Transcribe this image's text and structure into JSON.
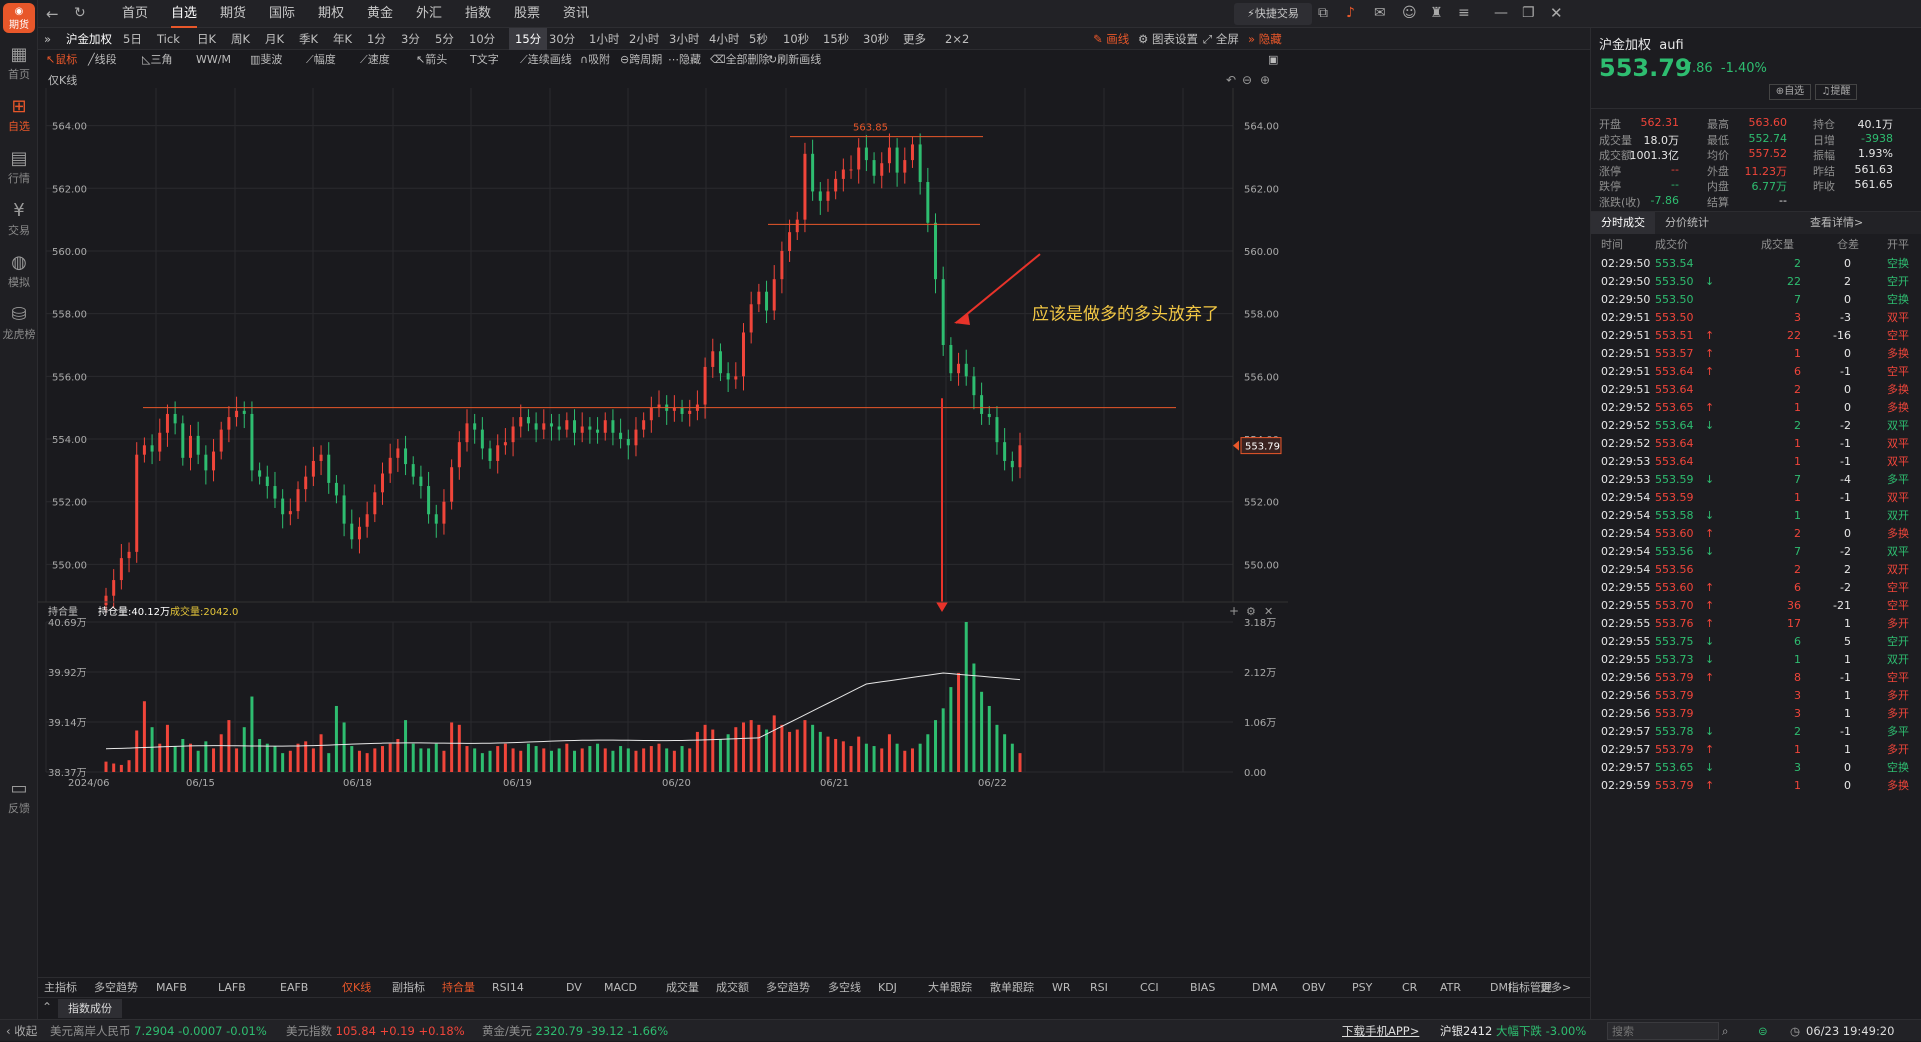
{
  "app": {
    "logo_text": "期货"
  },
  "leftnav": [
    "首页",
    "自选",
    "行情",
    "交易",
    "模拟",
    "龙虎榜",
    "反馈"
  ],
  "topnav": {
    "items": [
      "首页",
      "自选",
      "期货",
      "国际",
      "期权",
      "黄金",
      "外汇",
      "指数",
      "股票",
      "资讯"
    ],
    "quick_trade": "快捷交易"
  },
  "toolbar": {
    "symbol": "沪金加权",
    "periods": [
      "5日",
      "Tick",
      "日K",
      "周K",
      "月K",
      "季K",
      "年K",
      "1分",
      "3分",
      "5分",
      "10分",
      "15分",
      "30分",
      "1小时",
      "2小时",
      "3小时",
      "4小时",
      "5秒",
      "10秒",
      "15秒",
      "30秒",
      "更多",
      "2×2"
    ],
    "selected_period": "15分",
    "right": [
      "画线",
      "图表设置",
      "全屏",
      "隐藏"
    ]
  },
  "drawtools": [
    "鼠标",
    "线段",
    "三角",
    "W/M",
    "斐波",
    "幅度",
    "速度",
    "箭头",
    "文字",
    "连续画线",
    "吸附",
    "跨周期",
    "隐藏",
    "全部删除",
    "刷新画线"
  ],
  "chart_data": {
    "type": "candlestick",
    "title": "仅K线",
    "ylabel_ticks": [
      "564.00",
      "562.00",
      "560.00",
      "558.00",
      "556.00",
      "554.00",
      "552.00",
      "550.00"
    ],
    "y_values": [
      564,
      562,
      560,
      558,
      556,
      554,
      552,
      550
    ],
    "ylim": [
      548.8,
      565.2
    ],
    "x_ticks": [
      "2024/06",
      "06/15",
      "06/18",
      "06/19",
      "06/20",
      "06/21",
      "06/22"
    ],
    "closes": [
      549.0,
      549.5,
      550.2,
      550.4,
      553.5,
      553.8,
      553.6,
      554.2,
      554.8,
      554.5,
      553.4,
      554.1,
      553.5,
      553.0,
      553.6,
      554.3,
      554.7,
      554.9,
      554.8,
      553.0,
      552.8,
      552.5,
      552.1,
      551.6,
      551.7,
      552.4,
      552.8,
      553.3,
      553.5,
      552.6,
      552.2,
      551.3,
      550.8,
      551.2,
      551.6,
      552.3,
      552.9,
      553.4,
      553.7,
      553.2,
      552.8,
      552.5,
      551.6,
      551.3,
      552.0,
      553.1,
      553.9,
      554.5,
      554.3,
      553.7,
      553.3,
      553.8,
      553.9,
      554.4,
      554.7,
      554.5,
      554.3,
      554.5,
      554.4,
      554.3,
      554.6,
      554.2,
      554.4,
      554.3,
      554.2,
      554.6,
      554.2,
      554.0,
      553.8,
      554.3,
      554.6,
      555.0,
      555.1,
      554.9,
      555.0,
      554.8,
      554.9,
      555.1,
      556.3,
      556.8,
      556.1,
      555.9,
      556.0,
      557.4,
      558.3,
      558.7,
      558.1,
      559.1,
      560.0,
      560.6,
      561.0,
      563.1,
      561.9,
      561.6,
      561.9,
      562.3,
      562.6,
      562.6,
      563.3,
      562.9,
      562.4,
      562.8,
      563.3,
      562.5,
      562.9,
      563.4,
      562.2,
      560.9,
      559.1,
      557.0,
      556.1,
      556.4,
      556.0,
      555.4,
      554.8,
      554.7,
      553.9,
      553.3,
      553.1,
      553.8
    ],
    "annotation_high": "563.85",
    "annotation_text": "应该是做多的多头放弃了",
    "last_price_label": "553.79",
    "volume_panel": {
      "label": "持合量",
      "oi_label": "持仓量:40.12万",
      "vol_label": "成交量:2042.0",
      "left_ticks": [
        "40.69万",
        "39.92万",
        "39.14万",
        "38.37万"
      ],
      "right_ticks": [
        "3.18万",
        "2.12万",
        "1.06万",
        "0.00"
      ],
      "volumes": [
        0.22,
        0.18,
        0.15,
        0.25,
        0.88,
        1.5,
        0.95,
        0.6,
        1.0,
        0.55,
        0.7,
        0.6,
        0.45,
        0.65,
        0.5,
        0.8,
        1.1,
        0.5,
        0.95,
        1.6,
        0.7,
        0.6,
        0.55,
        0.4,
        0.45,
        0.6,
        0.65,
        0.5,
        0.8,
        0.4,
        1.4,
        1.05,
        0.55,
        0.45,
        0.4,
        0.5,
        0.55,
        0.6,
        0.7,
        1.1,
        0.6,
        0.5,
        0.5,
        0.6,
        0.45,
        1.05,
        1.0,
        0.55,
        0.5,
        0.4,
        0.45,
        0.55,
        0.6,
        0.5,
        0.45,
        0.6,
        0.55,
        0.5,
        0.45,
        0.5,
        0.6,
        0.45,
        0.5,
        0.55,
        0.6,
        0.5,
        0.45,
        0.55,
        0.5,
        0.45,
        0.5,
        0.55,
        0.6,
        0.5,
        0.45,
        0.55,
        0.5,
        0.85,
        1.0,
        0.9,
        0.7,
        0.8,
        0.95,
        1.05,
        1.1,
        1.0,
        0.9,
        1.2,
        1.0,
        0.85,
        0.9,
        1.1,
        1.0,
        0.85,
        0.75,
        0.7,
        0.65,
        0.55,
        0.75,
        0.6,
        0.55,
        0.5,
        0.8,
        0.6,
        0.45,
        0.5,
        0.6,
        0.8,
        1.1,
        1.35,
        1.8,
        2.1,
        3.18,
        2.3,
        1.7,
        1.4,
        1.0,
        0.8,
        0.6,
        0.4
      ]
    }
  },
  "indicator_tabs": [
    "主指标",
    "多空趋势",
    "MAFB",
    "LAFB",
    "EAFB",
    "仅K线",
    "副指标",
    "持合量",
    "RSI14",
    "DV",
    "MACD",
    "成交量",
    "成交额",
    "多空趋势",
    "多空线",
    "KDJ",
    "大单跟踪",
    "散单跟踪",
    "WR",
    "RSI",
    "CCI",
    "BIAS",
    "DMA",
    "OBV",
    "PSY",
    "CR",
    "ATR",
    "DMI",
    "更多>",
    "指标管理"
  ],
  "bottom_tab": "指数成份",
  "statusbar": {
    "collapse": "收起",
    "items": [
      {
        "name": "美元离岸人民币",
        "price": "7.2904",
        "chg": "-0.0007",
        "pct": "-0.01%",
        "dir": "down"
      },
      {
        "name": "美元指数",
        "price": "105.84",
        "chg": "+0.19",
        "pct": "+0.18%",
        "dir": "up"
      },
      {
        "name": "黄金/美元",
        "price": "2320.79",
        "chg": "-39.12",
        "pct": "-1.66%",
        "dir": "down"
      }
    ],
    "download": "下载手机APP>",
    "alert_symbol": "沪银2412",
    "alert_text": "大幅下跌",
    "alert_pct": "-3.00%",
    "search_placeholder": "搜索",
    "datetime": "06/23 19:49:20"
  },
  "quote": {
    "name": "沪金加权",
    "code": "aufi",
    "price": "553.79",
    "chg": "-7.86",
    "pct": "-1.40%",
    "btn_fav": "自选",
    "btn_alert": "提醒",
    "rows": [
      [
        [
          "开盘",
          "562.31",
          "red"
        ],
        [
          "最高",
          "563.60",
          "red"
        ],
        [
          "持仓",
          "40.1万",
          "white"
        ]
      ],
      [
        [
          "成交量",
          "18.0万",
          "white"
        ],
        [
          "最低",
          "552.74",
          "green"
        ],
        [
          "日增",
          "-3938",
          "green"
        ]
      ],
      [
        [
          "成交额",
          "1001.3亿",
          "white"
        ],
        [
          "均价",
          "557.52",
          "red"
        ],
        [
          "振幅",
          "1.93%",
          "white"
        ]
      ],
      [
        [
          "涨停",
          "--",
          "red"
        ],
        [
          "外盘",
          "11.23万",
          "red"
        ],
        [
          "昨结",
          "561.63",
          "white"
        ]
      ],
      [
        [
          "跌停",
          "--",
          "green"
        ],
        [
          "内盘",
          "6.77万",
          "green"
        ],
        [
          "昨收",
          "561.65",
          "white"
        ]
      ],
      [
        [
          "涨跌(收)",
          "-7.86",
          "green"
        ],
        [
          "结算",
          "--",
          "white"
        ],
        [
          "",
          "",
          ""
        ]
      ]
    ]
  },
  "trades": {
    "tabs": [
      "分时成交",
      "分价统计"
    ],
    "more": "查看详情>",
    "headers": [
      "时间",
      "成交价",
      "成交量",
      "仓差",
      "开平"
    ],
    "rows": [
      [
        "02:29:50",
        "553.54",
        "",
        "2",
        "0",
        "空换",
        "g"
      ],
      [
        "02:29:50",
        "553.50",
        "↓",
        "22",
        "2",
        "空开",
        "g"
      ],
      [
        "02:29:50",
        "553.50",
        "",
        "7",
        "0",
        "空换",
        "g"
      ],
      [
        "02:29:51",
        "553.50",
        "",
        "3",
        "-3",
        "双平",
        "r"
      ],
      [
        "02:29:51",
        "553.51",
        "↑",
        "22",
        "-16",
        "空平",
        "r"
      ],
      [
        "02:29:51",
        "553.57",
        "↑",
        "1",
        "0",
        "多换",
        "r"
      ],
      [
        "02:29:51",
        "553.64",
        "↑",
        "6",
        "-1",
        "空平",
        "r"
      ],
      [
        "02:29:51",
        "553.64",
        "",
        "2",
        "0",
        "多换",
        "r"
      ],
      [
        "02:29:52",
        "553.65",
        "↑",
        "1",
        "0",
        "多换",
        "r"
      ],
      [
        "02:29:52",
        "553.64",
        "↓",
        "2",
        "-2",
        "双平",
        "g"
      ],
      [
        "02:29:52",
        "553.64",
        "",
        "1",
        "-1",
        "双平",
        "r"
      ],
      [
        "02:29:53",
        "553.64",
        "",
        "1",
        "-1",
        "双平",
        "r"
      ],
      [
        "02:29:53",
        "553.59",
        "↓",
        "7",
        "-4",
        "多平",
        "g"
      ],
      [
        "02:29:54",
        "553.59",
        "",
        "1",
        "-1",
        "双平",
        "r"
      ],
      [
        "02:29:54",
        "553.58",
        "↓",
        "1",
        "1",
        "双开",
        "g"
      ],
      [
        "02:29:54",
        "553.60",
        "↑",
        "2",
        "0",
        "多换",
        "r"
      ],
      [
        "02:29:54",
        "553.56",
        "↓",
        "7",
        "-2",
        "双平",
        "g"
      ],
      [
        "02:29:54",
        "553.56",
        "",
        "2",
        "2",
        "双开",
        "r"
      ],
      [
        "02:29:55",
        "553.60",
        "↑",
        "6",
        "-2",
        "空平",
        "r"
      ],
      [
        "02:29:55",
        "553.70",
        "↑",
        "36",
        "-21",
        "空平",
        "r"
      ],
      [
        "02:29:55",
        "553.76",
        "↑",
        "17",
        "1",
        "多开",
        "r"
      ],
      [
        "02:29:55",
        "553.75",
        "↓",
        "6",
        "5",
        "空开",
        "g"
      ],
      [
        "02:29:55",
        "553.73",
        "↓",
        "1",
        "1",
        "双开",
        "g"
      ],
      [
        "02:29:56",
        "553.79",
        "↑",
        "8",
        "-1",
        "空平",
        "r"
      ],
      [
        "02:29:56",
        "553.79",
        "",
        "3",
        "1",
        "多开",
        "r"
      ],
      [
        "02:29:56",
        "553.79",
        "",
        "3",
        "1",
        "多开",
        "r"
      ],
      [
        "02:29:57",
        "553.78",
        "↓",
        "2",
        "-1",
        "多平",
        "g"
      ],
      [
        "02:29:57",
        "553.79",
        "↑",
        "1",
        "1",
        "多开",
        "r"
      ],
      [
        "02:29:57",
        "553.65",
        "↓",
        "3",
        "0",
        "空换",
        "g"
      ],
      [
        "02:29:59",
        "553.79",
        "↑",
        "1",
        "0",
        "多换",
        "r"
      ]
    ]
  },
  "colors": {
    "up": "#f0453a",
    "down": "#2ebd70",
    "accent": "#e8572a",
    "annotation": "#f2c744"
  }
}
